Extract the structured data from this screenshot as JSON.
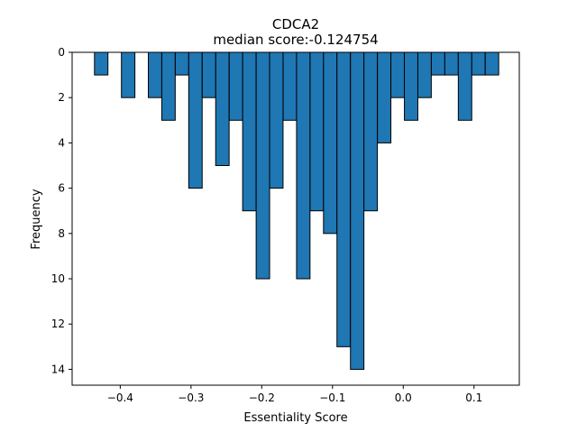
{
  "chart_data": {
    "type": "bar",
    "title": "CDCA2",
    "subtitle": "median score:-0.124754",
    "xlabel": "Essentiality Score",
    "ylabel": "Frequency",
    "xlim": [
      -0.468,
      0.164
    ],
    "ylim": [
      0,
      14.7
    ],
    "y_inverted": true,
    "bin_width": 0.019,
    "x_ticks": [
      -0.4,
      -0.3,
      -0.2,
      -0.1,
      0.0,
      0.1
    ],
    "x_tick_labels": [
      "−0.4",
      "−0.3",
      "−0.2",
      "−0.1",
      "0.0",
      "0.1"
    ],
    "y_ticks": [
      0,
      2,
      4,
      6,
      8,
      10,
      12,
      14
    ],
    "y_tick_labels": [
      "0",
      "2",
      "4",
      "6",
      "8",
      "10",
      "12",
      "14"
    ],
    "bins": [
      {
        "x0": -0.4364,
        "count": 1
      },
      {
        "x0": -0.3983,
        "count": 2
      },
      {
        "x0": -0.3603,
        "count": 2
      },
      {
        "x0": -0.3413,
        "count": 3
      },
      {
        "x0": -0.3222,
        "count": 1
      },
      {
        "x0": -0.3032,
        "count": 6
      },
      {
        "x0": -0.2841,
        "count": 2
      },
      {
        "x0": -0.2651,
        "count": 5
      },
      {
        "x0": -0.246,
        "count": 3
      },
      {
        "x0": -0.227,
        "count": 7
      },
      {
        "x0": -0.2079,
        "count": 10
      },
      {
        "x0": -0.1889,
        "count": 6
      },
      {
        "x0": -0.1698,
        "count": 3
      },
      {
        "x0": -0.1508,
        "count": 10
      },
      {
        "x0": -0.1317,
        "count": 7
      },
      {
        "x0": -0.1127,
        "count": 8
      },
      {
        "x0": -0.0937,
        "count": 13
      },
      {
        "x0": -0.0746,
        "count": 14
      },
      {
        "x0": -0.0556,
        "count": 7
      },
      {
        "x0": -0.0365,
        "count": 4
      },
      {
        "x0": -0.0175,
        "count": 2
      },
      {
        "x0": 0.0016,
        "count": 3
      },
      {
        "x0": 0.0206,
        "count": 2
      },
      {
        "x0": 0.0397,
        "count": 1
      },
      {
        "x0": 0.0587,
        "count": 1
      },
      {
        "x0": 0.0778,
        "count": 3
      },
      {
        "x0": 0.0968,
        "count": 1
      },
      {
        "x0": 0.1159,
        "count": 1
      }
    ],
    "bar_color": "#1f77b4",
    "edge_color": "#000000",
    "grid": false,
    "legend": false
  }
}
